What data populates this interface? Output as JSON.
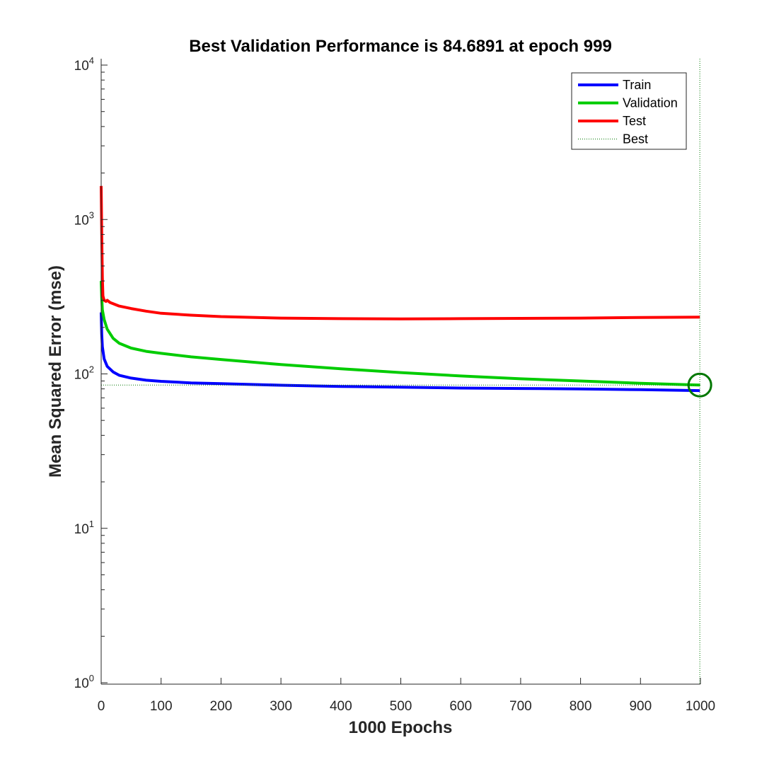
{
  "chart_data": {
    "type": "line",
    "title": "Best Validation Performance is 84.6891 at epoch 999",
    "xlabel": "1000 Epochs",
    "ylabel": "Mean Squared Error  (mse)",
    "xlim": [
      0,
      1000
    ],
    "ylim": [
      1,
      10000
    ],
    "yscale": "log",
    "grid": false,
    "legend_position": "top-right",
    "x_ticks": [
      0,
      100,
      200,
      300,
      400,
      500,
      600,
      700,
      800,
      900,
      1000
    ],
    "y_ticks": [
      {
        "base": "10",
        "exp": "0",
        "value": 1
      },
      {
        "base": "10",
        "exp": "1",
        "value": 10
      },
      {
        "base": "10",
        "exp": "2",
        "value": 100
      },
      {
        "base": "10",
        "exp": "3",
        "value": 1000
      },
      {
        "base": "10",
        "exp": "4",
        "value": 10000
      }
    ],
    "series": [
      {
        "name": "Train",
        "color": "#0000ff",
        "style": "solid",
        "x": [
          0,
          1,
          2,
          5,
          10,
          20,
          30,
          50,
          75,
          100,
          150,
          200,
          300,
          400,
          500,
          600,
          700,
          800,
          900,
          999
        ],
        "y": [
          250,
          180,
          150,
          125,
          112,
          103,
          98,
          94,
          91,
          89.5,
          87.5,
          86.5,
          84.5,
          83,
          82,
          81,
          80.5,
          80,
          79,
          78
        ]
      },
      {
        "name": "Validation",
        "color": "#00cc00",
        "style": "solid",
        "x": [
          0,
          1,
          2,
          5,
          10,
          20,
          30,
          50,
          75,
          100,
          150,
          200,
          300,
          400,
          500,
          600,
          700,
          800,
          900,
          999
        ],
        "y": [
          400,
          310,
          260,
          225,
          195,
          170,
          158,
          147,
          140,
          136,
          129,
          124,
          115,
          108,
          102,
          97,
          93,
          90,
          87,
          84.6891
        ]
      },
      {
        "name": "Test",
        "color": "#ff0000",
        "style": "solid",
        "x": [
          0,
          1,
          2,
          3,
          5,
          8,
          10,
          15,
          20,
          30,
          50,
          75,
          100,
          150,
          200,
          300,
          400,
          500,
          600,
          700,
          800,
          900,
          999
        ],
        "y": [
          1650,
          800,
          420,
          320,
          300,
          295,
          300,
          290,
          285,
          275,
          265,
          255,
          247,
          240,
          235,
          230,
          228,
          227,
          228,
          229,
          230,
          232,
          233
        ]
      },
      {
        "name": "Best",
        "color": "#007700",
        "style": "dotted"
      }
    ],
    "best": {
      "epoch": 999,
      "value": 84.6891
    }
  }
}
